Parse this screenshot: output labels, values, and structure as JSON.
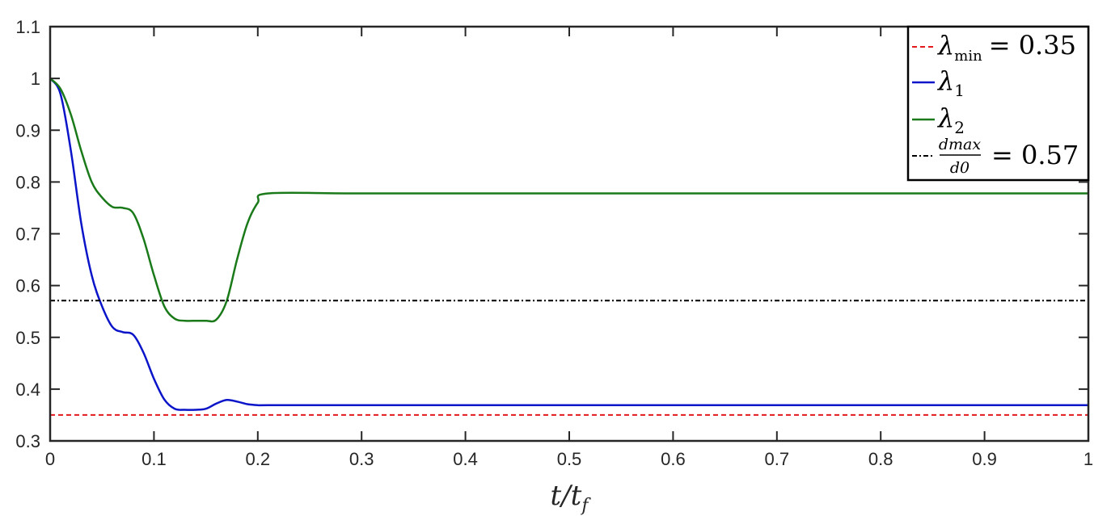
{
  "chart_data": {
    "type": "line",
    "title": "",
    "xlabel": "t/t_f",
    "ylabel": "",
    "xlim": [
      0,
      1
    ],
    "ylim": [
      0.3,
      1.1
    ],
    "grid": false,
    "legend_position": "top-right",
    "x_ticks": [
      "0",
      "0.1",
      "0.2",
      "0.3",
      "0.4",
      "0.5",
      "0.6",
      "0.7",
      "0.8",
      "0.9",
      "1"
    ],
    "y_ticks": [
      "0.3",
      "0.4",
      "0.5",
      "0.6",
      "0.7",
      "0.8",
      "0.9",
      "1",
      "1.1"
    ],
    "series": [
      {
        "name": "λmin = 0.35",
        "color": "#e31a1c",
        "style": "dashed",
        "x": [
          0,
          1
        ],
        "y": [
          0.35,
          0.35
        ]
      },
      {
        "name": "λ1",
        "color": "#0a14c8",
        "style": "solid",
        "x": [
          0,
          0.01,
          0.02,
          0.03,
          0.04,
          0.05,
          0.06,
          0.07,
          0.08,
          0.09,
          0.1,
          0.11,
          0.12,
          0.13,
          0.14,
          0.15,
          0.16,
          0.17,
          0.18,
          0.19,
          0.2,
          0.21,
          0.3,
          0.5,
          0.7,
          1.0
        ],
        "y": [
          1.0,
          0.97,
          0.86,
          0.72,
          0.62,
          0.56,
          0.52,
          0.51,
          0.505,
          0.47,
          0.42,
          0.38,
          0.362,
          0.36,
          0.36,
          0.362,
          0.372,
          0.379,
          0.376,
          0.371,
          0.369,
          0.369,
          0.369,
          0.369,
          0.369,
          0.369
        ]
      },
      {
        "name": "λ2",
        "color": "#1a7a1a",
        "style": "solid",
        "x": [
          0,
          0.01,
          0.02,
          0.03,
          0.04,
          0.05,
          0.06,
          0.07,
          0.08,
          0.09,
          0.1,
          0.11,
          0.12,
          0.13,
          0.14,
          0.15,
          0.16,
          0.17,
          0.18,
          0.19,
          0.2,
          0.21,
          0.3,
          0.5,
          0.7,
          1.0
        ],
        "y": [
          1.0,
          0.98,
          0.93,
          0.86,
          0.8,
          0.77,
          0.752,
          0.75,
          0.74,
          0.69,
          0.62,
          0.56,
          0.536,
          0.532,
          0.532,
          0.532,
          0.534,
          0.57,
          0.65,
          0.72,
          0.76,
          0.778,
          0.778,
          0.778,
          0.778,
          0.778
        ]
      },
      {
        "name": "dmax/d0 = 0.57",
        "color": "#000000",
        "style": "dashdot",
        "x": [
          0,
          1
        ],
        "y": [
          0.571,
          0.571
        ]
      }
    ]
  },
  "legend": {
    "min_label": "λ",
    "min_sub": "min",
    "min_value": "= 0.35",
    "l1_label": "λ",
    "l1_sub": "1",
    "l2_label": "λ",
    "l2_sub": "2",
    "frac_num": "dmax",
    "frac_den": "d0",
    "frac_value": "= 0.57"
  }
}
